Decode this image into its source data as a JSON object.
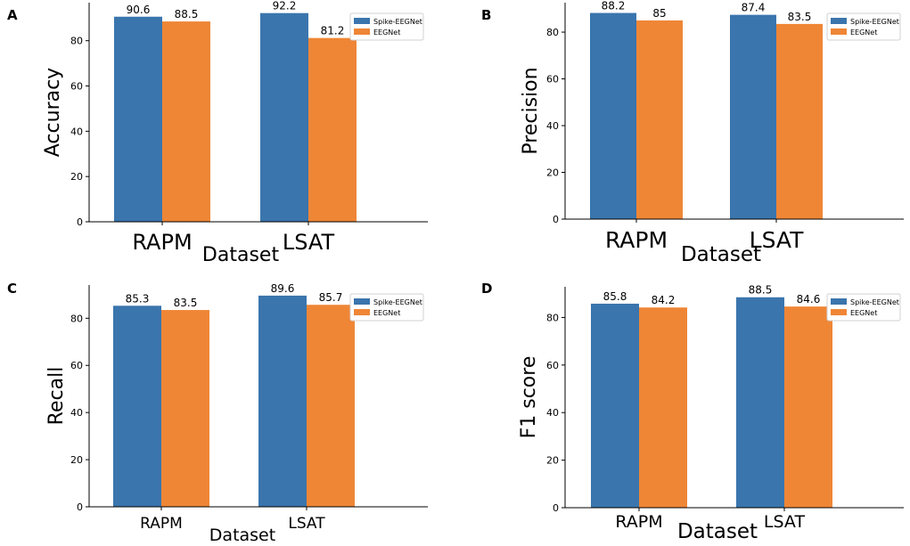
{
  "colors": {
    "series_1": "#3a75ad",
    "series_2": "#ef8636"
  },
  "chart_data": [
    {
      "panel": "A",
      "type": "bar",
      "title": "",
      "xlabel": "Dataset",
      "ylabel": "Accuracy",
      "categories": [
        "RAPM",
        "LSAT"
      ],
      "series": [
        {
          "name": "Spike-EEGNet",
          "values": [
            90.6,
            92.2
          ]
        },
        {
          "name": "EEGNet",
          "values": [
            88.5,
            81.2
          ]
        }
      ],
      "yticks": [
        0,
        20,
        40,
        60,
        80
      ],
      "ylim": [
        0,
        96.8
      ],
      "legend": "top-right"
    },
    {
      "panel": "B",
      "type": "bar",
      "title": "",
      "xlabel": "Dataset",
      "ylabel": "Precision",
      "categories": [
        "RAPM",
        "LSAT"
      ],
      "series": [
        {
          "name": "Spike-EEGNet",
          "values": [
            88.2,
            87.4
          ]
        },
        {
          "name": "EEGNet",
          "values": [
            85.0,
            83.5
          ]
        }
      ],
      "yticks": [
        0,
        20,
        40,
        60,
        80
      ],
      "ylim": [
        0,
        92.6
      ],
      "legend": "top-right"
    },
    {
      "panel": "C",
      "type": "bar",
      "title": "",
      "xlabel": "Dataset",
      "ylabel": "Recall",
      "categories": [
        "RAPM",
        "LSAT"
      ],
      "series": [
        {
          "name": "Spike-EEGNet",
          "values": [
            85.3,
            89.6
          ]
        },
        {
          "name": "EEGNet",
          "values": [
            83.5,
            85.7
          ]
        }
      ],
      "yticks": [
        0,
        20,
        40,
        60,
        80
      ],
      "ylim": [
        0,
        94.1
      ],
      "legend": "top-right"
    },
    {
      "panel": "D",
      "type": "bar",
      "title": "",
      "xlabel": "Dataset",
      "ylabel": "F1 score",
      "categories": [
        "RAPM",
        "LSAT"
      ],
      "series": [
        {
          "name": "Spike-EEGNet",
          "values": [
            85.8,
            88.5
          ]
        },
        {
          "name": "EEGNet",
          "values": [
            84.2,
            84.6
          ]
        }
      ],
      "yticks": [
        0,
        20,
        40,
        60,
        80
      ],
      "ylim": [
        0,
        92.9
      ],
      "legend": "top-right"
    }
  ]
}
